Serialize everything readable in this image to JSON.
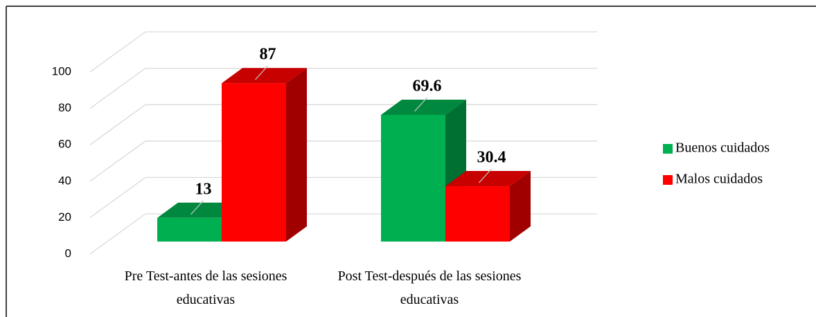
{
  "chart_data": {
    "type": "bar3d",
    "categories": [
      "Pre Test-antes de las sesiones educativas",
      "Post Test-después de las sesiones educativas"
    ],
    "series": [
      {
        "name": "Buenos cuidados",
        "color": "#00b050",
        "values": [
          13,
          69.6
        ]
      },
      {
        "name": "Malos cuidados",
        "color": "#ff0000",
        "values": [
          87,
          30.4
        ]
      }
    ],
    "ylim": [
      0,
      100
    ],
    "yticks": [
      0,
      20,
      40,
      60,
      80,
      100
    ],
    "grid": true,
    "legend": "right"
  }
}
